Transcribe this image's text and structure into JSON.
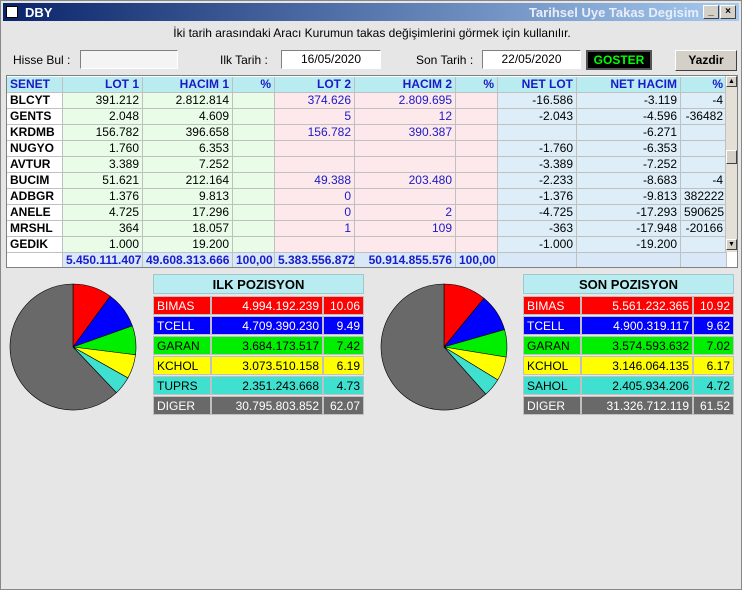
{
  "window": {
    "title": "DBY",
    "subtitle": "Tarihsel Uye Takas Degisim"
  },
  "hint": "İki tarih arasındaki Aracı Kurumun takas değişimlerini görmek için kullanılır.",
  "form": {
    "hisse_label": "Hisse Bul :",
    "hisse_value": "",
    "ilk_tarih_label": "Ilk Tarih :",
    "ilk_tarih_value": "16/05/2020",
    "son_tarih_label": "Son Tarih :",
    "son_tarih_value": "22/05/2020",
    "goster_label": "GOSTER",
    "yazdir_label": "Yazdir"
  },
  "grid": {
    "columns": [
      "SENET",
      "LOT 1",
      "HACIM 1",
      "%",
      "LOT 2",
      "HACIM 2",
      "%",
      "NET LOT",
      "NET HACIM",
      "%"
    ],
    "rows": [
      [
        "BLCYT",
        "391.212",
        "2.812.814",
        "",
        "374.626",
        "2.809.695",
        "",
        "-16.586",
        "-3.119",
        "-4"
      ],
      [
        "GENTS",
        "2.048",
        "4.609",
        "",
        "5",
        "12",
        "",
        "-2.043",
        "-4.596",
        "-36482"
      ],
      [
        "KRDMB",
        "156.782",
        "396.658",
        "",
        "156.782",
        "390.387",
        "",
        "",
        "-6.271",
        ""
      ],
      [
        "NUGYO",
        "1.760",
        "6.353",
        "",
        "",
        "",
        "",
        "-1.760",
        "-6.353",
        ""
      ],
      [
        "AVTUR",
        "3.389",
        "7.252",
        "",
        "",
        "",
        "",
        "-3.389",
        "-7.252",
        ""
      ],
      [
        "BUCIM",
        "51.621",
        "212.164",
        "",
        "49.388",
        "203.480",
        "",
        "-2.233",
        "-8.683",
        "-4"
      ],
      [
        "ADBGR",
        "1.376",
        "9.813",
        "",
        "0",
        "",
        "",
        "-1.376",
        "-9.813",
        "382222"
      ],
      [
        "ANELE",
        "4.725",
        "17.296",
        "",
        "0",
        "2",
        "",
        "-4.725",
        "-17.293",
        "590625"
      ],
      [
        "MRSHL",
        "364",
        "18.057",
        "",
        "1",
        "109",
        "",
        "-363",
        "-17.948",
        "-20166"
      ],
      [
        "GEDIK",
        "1.000",
        "19.200",
        "",
        "",
        "",
        "",
        "-1.000",
        "-19.200",
        ""
      ]
    ],
    "totals": [
      "",
      "5.450.111.407",
      "49.608.313.666",
      "100,00",
      "5.383.556.872",
      "50.914.855.576",
      "100,00",
      "",
      "",
      ""
    ]
  },
  "ilk_pozisyon": {
    "title": "ILK POZISYON",
    "items": [
      {
        "name": "BIMAS",
        "value": "4.994.192.239",
        "pct": "10.06",
        "pct_num": 10.06,
        "bg": "#ff0000",
        "fg": "#ffffff"
      },
      {
        "name": "TCELL",
        "value": "4.709.390.230",
        "pct": "9.49",
        "pct_num": 9.49,
        "bg": "#0000ff",
        "fg": "#ffffff"
      },
      {
        "name": "GARAN",
        "value": "3.684.173.517",
        "pct": "7.42",
        "pct_num": 7.42,
        "bg": "#00ee00",
        "fg": "#000000"
      },
      {
        "name": "KCHOL",
        "value": "3.073.510.158",
        "pct": "6.19",
        "pct_num": 6.19,
        "bg": "#ffff00",
        "fg": "#000000"
      },
      {
        "name": "TUPRS",
        "value": "2.351.243.668",
        "pct": "4.73",
        "pct_num": 4.73,
        "bg": "#40e0d0",
        "fg": "#000000"
      },
      {
        "name": "DIGER",
        "value": "30.795.803.852",
        "pct": "62.07",
        "pct_num": 62.07,
        "bg": "#696969",
        "fg": "#ffffff"
      }
    ]
  },
  "son_pozisyon": {
    "title": "SON POZISYON",
    "items": [
      {
        "name": "BIMAS",
        "value": "5.561.232.365",
        "pct": "10.92",
        "pct_num": 10.92,
        "bg": "#ff0000",
        "fg": "#ffffff"
      },
      {
        "name": "TCELL",
        "value": "4.900.319.117",
        "pct": "9.62",
        "pct_num": 9.62,
        "bg": "#0000ff",
        "fg": "#ffffff"
      },
      {
        "name": "GARAN",
        "value": "3.574.593.632",
        "pct": "7.02",
        "pct_num": 7.02,
        "bg": "#00ee00",
        "fg": "#000000"
      },
      {
        "name": "KCHOL",
        "value": "3.146.064.135",
        "pct": "6.17",
        "pct_num": 6.17,
        "bg": "#ffff00",
        "fg": "#000000"
      },
      {
        "name": "SAHOL",
        "value": "2.405.934.206",
        "pct": "4.72",
        "pct_num": 4.72,
        "bg": "#40e0d0",
        "fg": "#000000"
      },
      {
        "name": "DIGER",
        "value": "31.326.712.119",
        "pct": "61.52",
        "pct_num": 61.52,
        "bg": "#696969",
        "fg": "#ffffff"
      }
    ]
  },
  "chart_data": [
    {
      "type": "pie",
      "title": "",
      "categories": [
        "BIMAS",
        "TCELL",
        "GARAN",
        "KCHOL",
        "TUPRS",
        "DIGER"
      ],
      "values": [
        10.06,
        9.49,
        7.42,
        6.19,
        4.73,
        62.07
      ],
      "colors": [
        "#ff0000",
        "#0000ff",
        "#00ee00",
        "#ffff00",
        "#40e0d0",
        "#696969"
      ]
    },
    {
      "type": "pie",
      "title": "",
      "categories": [
        "BIMAS",
        "TCELL",
        "GARAN",
        "KCHOL",
        "SAHOL",
        "DIGER"
      ],
      "values": [
        10.92,
        9.62,
        7.02,
        6.17,
        4.72,
        61.52
      ],
      "colors": [
        "#ff0000",
        "#0000ff",
        "#00ee00",
        "#ffff00",
        "#40e0d0",
        "#696969"
      ]
    }
  ]
}
